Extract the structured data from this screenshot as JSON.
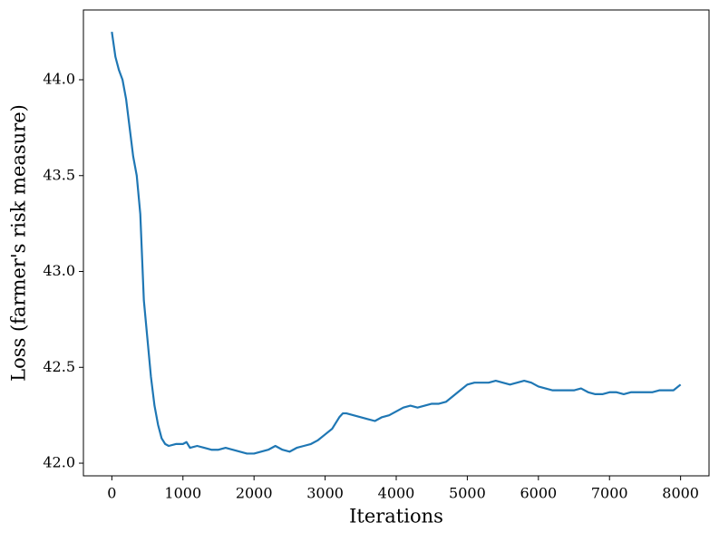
{
  "chart_data": {
    "type": "line",
    "xlabel": "Iterations",
    "ylabel": "Loss (farmer's risk measure)",
    "x": [
      0,
      50,
      100,
      150,
      200,
      250,
      300,
      350,
      400,
      450,
      500,
      550,
      600,
      650,
      700,
      750,
      800,
      900,
      1000,
      1050,
      1100,
      1200,
      1300,
      1400,
      1500,
      1600,
      1700,
      1800,
      1900,
      2000,
      2100,
      2200,
      2300,
      2400,
      2500,
      2600,
      2700,
      2800,
      2900,
      3000,
      3100,
      3200,
      3250,
      3300,
      3400,
      3500,
      3600,
      3700,
      3800,
      3900,
      4000,
      4100,
      4200,
      4300,
      4400,
      4500,
      4600,
      4700,
      4800,
      4900,
      5000,
      5100,
      5200,
      5300,
      5400,
      5500,
      5600,
      5700,
      5800,
      5900,
      6000,
      6100,
      6200,
      6300,
      6400,
      6500,
      6600,
      6700,
      6800,
      6900,
      7000,
      7100,
      7200,
      7300,
      7400,
      7500,
      7600,
      7700,
      7800,
      7900,
      8000
    ],
    "series": [
      {
        "color": "#1f77b4",
        "values": [
          44.25,
          44.12,
          44.05,
          44.0,
          43.9,
          43.75,
          43.6,
          43.5,
          43.3,
          42.85,
          42.65,
          42.45,
          42.3,
          42.2,
          42.13,
          42.1,
          42.09,
          42.1,
          42.1,
          42.11,
          42.08,
          42.09,
          42.08,
          42.07,
          42.07,
          42.08,
          42.07,
          42.06,
          42.05,
          42.05,
          42.06,
          42.07,
          42.09,
          42.07,
          42.06,
          42.08,
          42.09,
          42.1,
          42.12,
          42.15,
          42.18,
          42.24,
          42.26,
          42.26,
          42.25,
          42.24,
          42.23,
          42.22,
          42.24,
          42.25,
          42.27,
          42.29,
          42.3,
          42.29,
          42.3,
          42.31,
          42.31,
          42.32,
          42.35,
          42.38,
          42.41,
          42.42,
          42.42,
          42.42,
          42.43,
          42.42,
          42.41,
          42.42,
          42.43,
          42.42,
          42.4,
          42.39,
          42.38,
          42.38,
          42.38,
          42.38,
          42.39,
          42.37,
          42.36,
          42.36,
          42.37,
          42.37,
          42.36,
          42.37,
          42.37,
          42.37,
          42.37,
          42.38,
          42.38,
          42.38,
          42.41
        ]
      }
    ],
    "xlim": [
      -400,
      8400
    ],
    "xticks": [
      0,
      1000,
      2000,
      3000,
      4000,
      5000,
      6000,
      7000,
      8000
    ],
    "ylim": [
      41.934,
      44.364
    ],
    "yticks": [
      {
        "value": 42,
        "label": "42.0"
      },
      42.5,
      {
        "value": 43,
        "label": "43.0"
      },
      43.5,
      {
        "value": 44,
        "label": "44.0"
      }
    ]
  }
}
